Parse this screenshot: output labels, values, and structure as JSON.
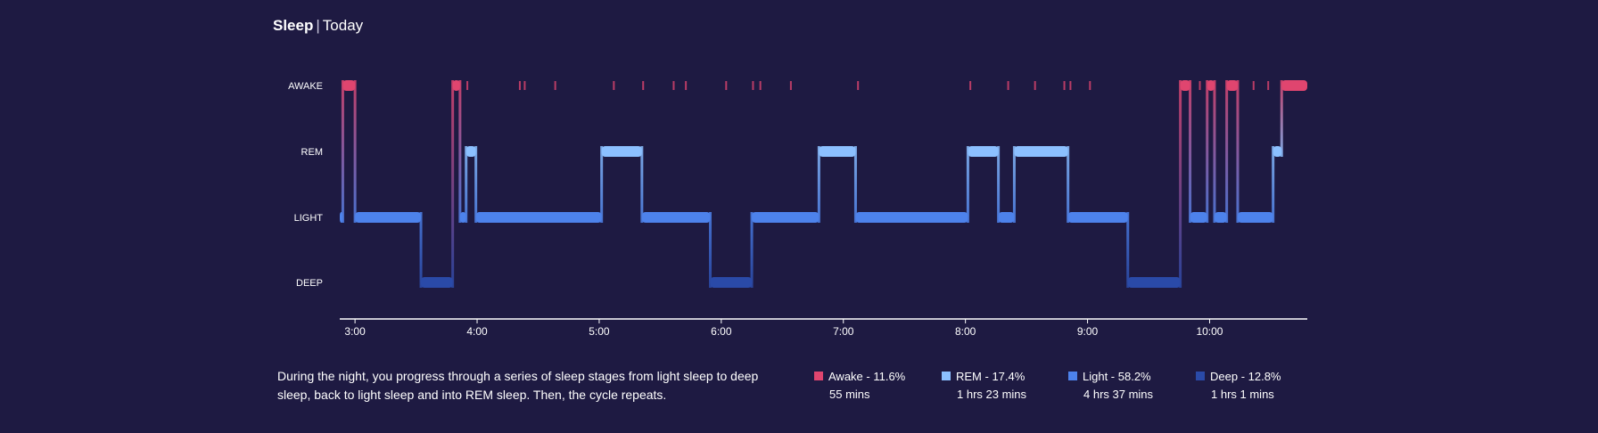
{
  "header": {
    "title": "Sleep",
    "separator": "|",
    "subtitle": "Today"
  },
  "description": "During the night, you progress through a series of sleep stages from light sleep to deep sleep, back to light sleep and into REM sleep. Then, the cycle repeats.",
  "legend": [
    {
      "key": "awake",
      "label": "Awake - 11.6%",
      "duration": "55 mins",
      "color": "#e0456f"
    },
    {
      "key": "rem",
      "label": "REM - 17.4%",
      "duration": "1 hrs 23 mins",
      "color": "#8cc0ff"
    },
    {
      "key": "light",
      "label": "Light - 58.2%",
      "duration": "4 hrs 37 mins",
      "color": "#4d82eb"
    },
    {
      "key": "deep",
      "label": "Deep - 12.8%",
      "duration": "1 hrs 1 mins",
      "color": "#2a4aa8"
    }
  ],
  "chart_data": {
    "type": "line",
    "title": "",
    "xlabel": "",
    "ylabel": "",
    "y_levels": [
      "AWAKE",
      "REM",
      "LIGHT",
      "DEEP"
    ],
    "x_ticks": [
      "3:00",
      "4:00",
      "5:00",
      "6:00",
      "7:00",
      "8:00",
      "9:00",
      "10:00"
    ],
    "x_tick_hours": [
      3,
      4,
      5,
      6,
      7,
      8,
      9,
      10
    ],
    "xlim": [
      2.875,
      10.8
    ],
    "colors": {
      "AWAKE": "#e0456f",
      "REM": "#8cc0ff",
      "LIGHT": "#4d82eb",
      "DEEP": "#2a4aa8"
    },
    "segments": [
      {
        "stage": "LIGHT",
        "start": 2.875,
        "end": 2.9
      },
      {
        "stage": "AWAKE",
        "start": 2.9,
        "end": 3.0
      },
      {
        "stage": "LIGHT",
        "start": 3.0,
        "end": 3.54
      },
      {
        "stage": "DEEP",
        "start": 3.54,
        "end": 3.8
      },
      {
        "stage": "AWAKE",
        "start": 3.8,
        "end": 3.86
      },
      {
        "stage": "LIGHT",
        "start": 3.86,
        "end": 3.91
      },
      {
        "stage": "REM",
        "start": 3.91,
        "end": 3.99
      },
      {
        "stage": "LIGHT",
        "start": 3.99,
        "end": 5.02
      },
      {
        "stage": "REM",
        "start": 5.02,
        "end": 5.35
      },
      {
        "stage": "LIGHT",
        "start": 5.35,
        "end": 5.91
      },
      {
        "stage": "DEEP",
        "start": 5.91,
        "end": 6.25
      },
      {
        "stage": "LIGHT",
        "start": 6.25,
        "end": 6.8
      },
      {
        "stage": "REM",
        "start": 6.8,
        "end": 7.1
      },
      {
        "stage": "LIGHT",
        "start": 7.1,
        "end": 8.02
      },
      {
        "stage": "REM",
        "start": 8.02,
        "end": 8.27
      },
      {
        "stage": "LIGHT",
        "start": 8.27,
        "end": 8.4
      },
      {
        "stage": "REM",
        "start": 8.4,
        "end": 8.84
      },
      {
        "stage": "LIGHT",
        "start": 8.84,
        "end": 9.33
      },
      {
        "stage": "DEEP",
        "start": 9.33,
        "end": 9.76
      },
      {
        "stage": "AWAKE",
        "start": 9.76,
        "end": 9.84
      },
      {
        "stage": "LIGHT",
        "start": 9.84,
        "end": 9.98
      },
      {
        "stage": "AWAKE",
        "start": 9.98,
        "end": 10.04
      },
      {
        "stage": "LIGHT",
        "start": 10.04,
        "end": 10.14
      },
      {
        "stage": "AWAKE",
        "start": 10.14,
        "end": 10.23
      },
      {
        "stage": "LIGHT",
        "start": 10.23,
        "end": 10.52
      },
      {
        "stage": "REM",
        "start": 10.52,
        "end": 10.59
      },
      {
        "stage": "AWAKE",
        "start": 10.59,
        "end": 10.8
      }
    ],
    "awake_blips": [
      3.92,
      4.35,
      4.39,
      4.64,
      5.12,
      5.36,
      5.61,
      5.71,
      6.04,
      6.26,
      6.32,
      6.57,
      7.12,
      8.04,
      8.35,
      8.57,
      8.81,
      8.86,
      9.02,
      9.92,
      10.36,
      10.48
    ]
  }
}
